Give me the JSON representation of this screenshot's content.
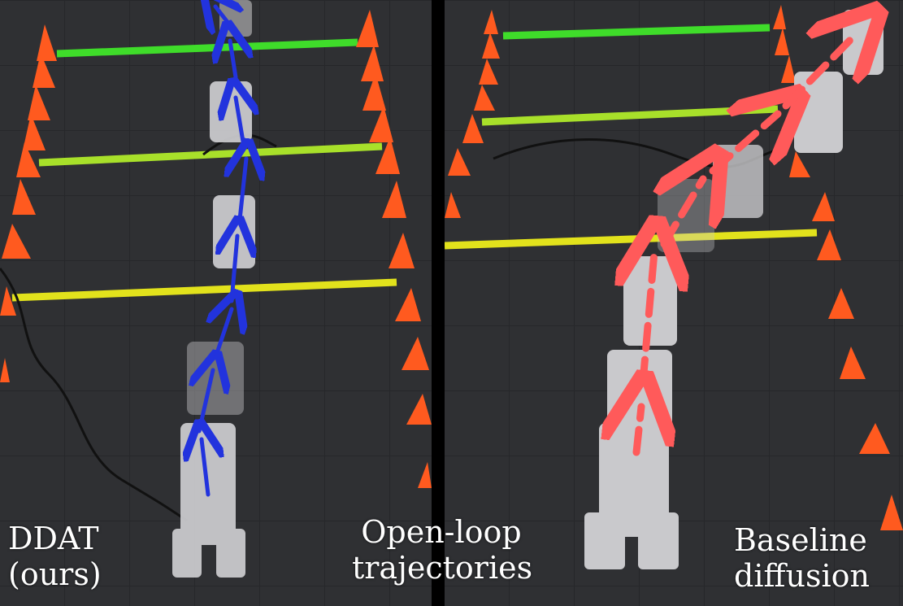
{
  "captions": {
    "left": [
      "DDAT",
      "(ours)"
    ],
    "center": [
      "Open-loop",
      "trajectories"
    ],
    "right": [
      "Baseline",
      "diffusion"
    ]
  },
  "colors": {
    "floor": "#2f3033",
    "divider": "#000000",
    "cone": "#ff5a1f",
    "line_green": "#3fdc2a",
    "line_lime": "#a8e02a",
    "line_yellow": "#e2e21c",
    "ddat_arrow": "#2233dd",
    "baseline_arrow": "#ff5a5a",
    "robot": "#c9c9cc"
  }
}
